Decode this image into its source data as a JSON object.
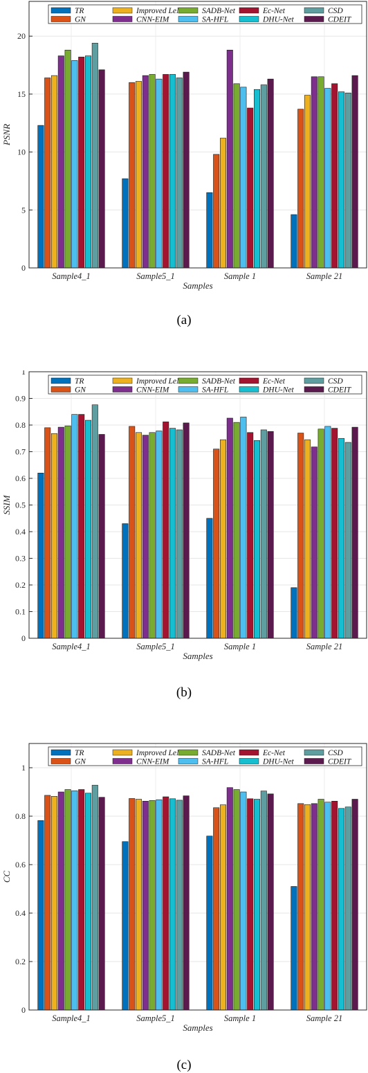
{
  "legend": {
    "entries": [
      "TR",
      "GN",
      "Improved LeNet",
      "CNN-EIM",
      "SADB-Net",
      "SA-HFL",
      "Ec-Net",
      "DHU-Net",
      "CSD",
      "CDEIT"
    ]
  },
  "colors": {
    "TR": "#0072bd",
    "GN": "#d95319",
    "Improved LeNet": "#edb120",
    "CNN-EIM": "#7e2f8e",
    "SADB-Net": "#77ac30",
    "SA-HFL": "#4dbeee",
    "Ec-Net": "#a2142f",
    "DHU-Net": "#17becf",
    "CSD": "#5f9ea0",
    "CDEIT": "#5b1a4e"
  },
  "chart_data": [
    {
      "type": "bar",
      "caption": "(a)",
      "xlabel": "Samples",
      "ylabel": "PSNR",
      "categories": [
        "Sample4_1",
        "Sample5_1",
        "Sample 1",
        "Sample 21"
      ],
      "ylim": [
        0,
        23
      ],
      "yticks": [
        0,
        5,
        10,
        15,
        20
      ],
      "grid": true,
      "legend_position": "top",
      "series": [
        {
          "name": "TR",
          "values": [
            12.3,
            7.7,
            6.5,
            4.6
          ]
        },
        {
          "name": "GN",
          "values": [
            16.4,
            16.0,
            9.8,
            13.7
          ]
        },
        {
          "name": "Improved LeNet",
          "values": [
            16.6,
            16.1,
            11.2,
            14.9
          ]
        },
        {
          "name": "CNN-EIM",
          "values": [
            18.3,
            16.6,
            18.8,
            16.5
          ]
        },
        {
          "name": "SADB-Net",
          "values": [
            18.8,
            16.7,
            15.9,
            16.5
          ]
        },
        {
          "name": "SA-HFL",
          "values": [
            17.9,
            16.3,
            15.6,
            15.5
          ]
        },
        {
          "name": "Ec-Net",
          "values": [
            18.2,
            16.7,
            13.8,
            15.9
          ]
        },
        {
          "name": "DHU-Net",
          "values": [
            18.3,
            16.7,
            15.4,
            15.2
          ]
        },
        {
          "name": "CSD",
          "values": [
            19.4,
            16.4,
            15.8,
            15.1
          ]
        },
        {
          "name": "CDEIT",
          "values": [
            17.1,
            16.9,
            16.3,
            16.6
          ]
        }
      ]
    },
    {
      "type": "bar",
      "caption": "(b)",
      "xlabel": "Samples",
      "ylabel": "SSIM",
      "categories": [
        "Sample4_1",
        "Sample5_1",
        "Sample 1",
        "Sample 21"
      ],
      "ylim": [
        0,
        1
      ],
      "yticks": [
        0,
        0.1,
        0.2,
        0.3,
        0.4,
        0.5,
        0.6,
        0.7,
        0.8,
        0.9,
        1
      ],
      "grid": true,
      "legend_position": "top",
      "series": [
        {
          "name": "TR",
          "values": [
            0.62,
            0.43,
            0.45,
            0.19
          ]
        },
        {
          "name": "GN",
          "values": [
            0.79,
            0.795,
            0.71,
            0.77
          ]
        },
        {
          "name": "Improved LeNet",
          "values": [
            0.768,
            0.772,
            0.745,
            0.745
          ]
        },
        {
          "name": "CNN-EIM",
          "values": [
            0.792,
            0.762,
            0.826,
            0.718
          ]
        },
        {
          "name": "SADB-Net",
          "values": [
            0.797,
            0.772,
            0.81,
            0.785
          ]
        },
        {
          "name": "SA-HFL",
          "values": [
            0.84,
            0.778,
            0.83,
            0.795
          ]
        },
        {
          "name": "Ec-Net",
          "values": [
            0.84,
            0.812,
            0.772,
            0.788
          ]
        },
        {
          "name": "DHU-Net",
          "values": [
            0.818,
            0.788,
            0.742,
            0.75
          ]
        },
        {
          "name": "CSD",
          "values": [
            0.876,
            0.782,
            0.782,
            0.735
          ]
        },
        {
          "name": "CDEIT",
          "values": [
            0.765,
            0.808,
            0.776,
            0.792
          ]
        }
      ]
    },
    {
      "type": "bar",
      "caption": "(c)",
      "xlabel": "Samples",
      "ylabel": "CC",
      "categories": [
        "Sample4_1",
        "Sample5_1",
        "Sample 1",
        "Sample 21"
      ],
      "ylim": [
        0,
        1.1
      ],
      "yticks": [
        0,
        0.2,
        0.4,
        0.6,
        0.8,
        1
      ],
      "grid": true,
      "legend_position": "top",
      "series": [
        {
          "name": "TR",
          "values": [
            0.782,
            0.695,
            0.718,
            0.51
          ]
        },
        {
          "name": "GN",
          "values": [
            0.886,
            0.873,
            0.835,
            0.852
          ]
        },
        {
          "name": "Improved LeNet",
          "values": [
            0.882,
            0.87,
            0.847,
            0.848
          ]
        },
        {
          "name": "CNN-EIM",
          "values": [
            0.9,
            0.862,
            0.918,
            0.852
          ]
        },
        {
          "name": "SADB-Net",
          "values": [
            0.91,
            0.865,
            0.91,
            0.87
          ]
        },
        {
          "name": "SA-HFL",
          "values": [
            0.905,
            0.868,
            0.9,
            0.858
          ]
        },
        {
          "name": "Ec-Net",
          "values": [
            0.91,
            0.88,
            0.872,
            0.862
          ]
        },
        {
          "name": "DHU-Net",
          "values": [
            0.895,
            0.872,
            0.87,
            0.832
          ]
        },
        {
          "name": "CSD",
          "values": [
            0.928,
            0.866,
            0.904,
            0.838
          ]
        },
        {
          "name": "CDEIT",
          "values": [
            0.878,
            0.884,
            0.892,
            0.87
          ]
        }
      ]
    }
  ]
}
